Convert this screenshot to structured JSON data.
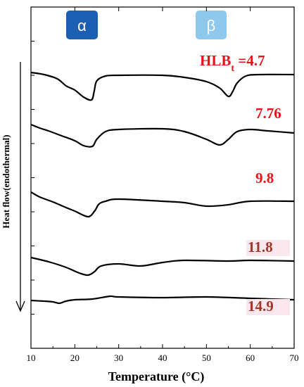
{
  "chart_data": {
    "type": "line",
    "title": "",
    "xlabel": "Temperature (°C)",
    "ylabel": "Heat flow(endothermal)",
    "xlim": [
      10,
      70
    ],
    "x_ticks": [
      10,
      20,
      30,
      40,
      50,
      60,
      70
    ],
    "x_tick_labels": [
      "10",
      "20",
      "30",
      "40",
      "50",
      "60",
      "70"
    ],
    "y_ticks": "unlabeled",
    "grid": false,
    "legend": "none",
    "phase_labels": [
      {
        "text": "α",
        "color": "#1b5fb3"
      },
      {
        "text": "β",
        "color": "#8ec8ec"
      }
    ],
    "series": [
      {
        "name": "HLB",
        "label": "HLBt =4.7",
        "label_main": "HLB",
        "label_sub": "t",
        "label_tail": " =4.7",
        "color": "#e8141a",
        "baseline": 105,
        "points": [
          [
            10,
            103
          ],
          [
            13,
            106
          ],
          [
            16,
            112
          ],
          [
            18,
            122
          ],
          [
            20,
            128
          ],
          [
            22,
            138
          ],
          [
            23.8,
            142
          ],
          [
            24.4,
            130
          ],
          [
            25,
            115
          ],
          [
            27,
            108
          ],
          [
            30,
            107
          ],
          [
            40,
            107
          ],
          [
            45,
            110
          ],
          [
            50,
            116
          ],
          [
            53,
            125
          ],
          [
            55,
            137
          ],
          [
            56,
            130
          ],
          [
            57,
            118
          ],
          [
            59,
            108
          ],
          [
            62,
            106
          ],
          [
            70,
            106
          ]
        ]
      },
      {
        "name": "7.76",
        "label": "7.76",
        "color": "#e8141a",
        "baseline": 180,
        "points": [
          [
            10,
            177
          ],
          [
            12,
            182
          ],
          [
            14,
            186
          ],
          [
            17,
            193
          ],
          [
            20,
            200
          ],
          [
            22,
            207
          ],
          [
            24,
            208
          ],
          [
            25,
            198
          ],
          [
            27,
            187
          ],
          [
            30,
            184
          ],
          [
            40,
            183
          ],
          [
            45,
            187
          ],
          [
            50,
            198
          ],
          [
            53,
            206
          ],
          [
            55,
            198
          ],
          [
            57,
            187
          ],
          [
            60,
            184
          ],
          [
            64,
            186
          ],
          [
            70,
            189
          ]
        ]
      },
      {
        "name": "9.8",
        "label": "9.8",
        "color": "#e8141a",
        "baseline": 275,
        "points": [
          [
            10,
            273
          ],
          [
            12,
            280
          ],
          [
            15,
            287
          ],
          [
            18,
            295
          ],
          [
            20,
            300
          ],
          [
            23,
            308
          ],
          [
            24.5,
            300
          ],
          [
            25.5,
            290
          ],
          [
            27,
            286
          ],
          [
            30,
            283
          ],
          [
            40,
            286
          ],
          [
            45,
            288
          ],
          [
            50,
            293
          ],
          [
            55,
            291
          ],
          [
            60,
            286
          ],
          [
            70,
            286
          ]
        ]
      },
      {
        "name": "11.8",
        "label": "11.8",
        "color": "#a0382a",
        "baseline": 368,
        "points": [
          [
            10,
            366
          ],
          [
            14,
            372
          ],
          [
            18,
            380
          ],
          [
            21,
            388
          ],
          [
            23,
            391
          ],
          [
            24.5,
            386
          ],
          [
            26,
            378
          ],
          [
            30,
            375
          ],
          [
            35,
            378
          ],
          [
            40,
            373
          ],
          [
            45,
            370
          ],
          [
            55,
            371
          ],
          [
            60,
            370
          ],
          [
            70,
            371
          ]
        ]
      },
      {
        "name": "14.9",
        "label": "14.9",
        "color": "#a0382a",
        "baseline": 427,
        "points": [
          [
            10,
            427
          ],
          [
            13,
            428
          ],
          [
            15,
            429
          ],
          [
            16.5,
            431
          ],
          [
            18,
            428
          ],
          [
            20,
            426
          ],
          [
            24,
            425
          ],
          [
            28,
            421
          ],
          [
            30,
            422
          ],
          [
            40,
            423
          ],
          [
            50,
            422
          ],
          [
            60,
            424
          ],
          [
            70,
            426
          ]
        ]
      }
    ],
    "y_units": "arbitrary (heat flow, endothermal down)"
  }
}
